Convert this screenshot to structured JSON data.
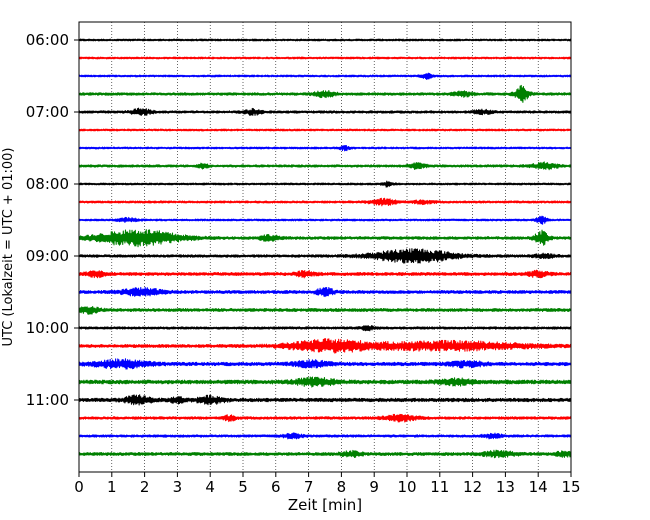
{
  "chart_data": {
    "type": "line",
    "title": "",
    "xlabel": "Zeit  [min]",
    "ylabel": "UTC (Lokalzeit = UTC + 01:00)",
    "xlim": [
      0,
      15
    ],
    "xticks": [
      0,
      1,
      2,
      3,
      4,
      5,
      6,
      7,
      8,
      9,
      10,
      11,
      12,
      13,
      14,
      15
    ],
    "y_tick_labels": [
      "06:00",
      "07:00",
      "08:00",
      "09:00",
      "10:00",
      "11:00"
    ],
    "grid": "vertical-dotted",
    "colors": [
      "#000000",
      "#ff0000",
      "#0000ff",
      "#008000"
    ],
    "traces": [
      {
        "start": "06:00",
        "color": "#000000",
        "base": 0.22,
        "events": []
      },
      {
        "start": "06:15",
        "color": "#ff0000",
        "base": 0.22,
        "events": []
      },
      {
        "start": "06:30",
        "color": "#0000ff",
        "base": 0.22,
        "events": [
          {
            "t": 10.6,
            "amp": 0.6,
            "dur": 0.15
          }
        ]
      },
      {
        "start": "06:45",
        "color": "#008000",
        "base": 0.3,
        "events": [
          {
            "t": 7.5,
            "amp": 0.7,
            "dur": 0.3
          },
          {
            "t": 11.7,
            "amp": 0.5,
            "dur": 0.3
          },
          {
            "t": 13.5,
            "amp": 1.8,
            "dur": 0.2
          }
        ]
      },
      {
        "start": "07:00",
        "color": "#000000",
        "base": 0.28,
        "events": [
          {
            "t": 1.9,
            "amp": 0.7,
            "dur": 0.3
          },
          {
            "t": 5.3,
            "amp": 0.6,
            "dur": 0.25
          },
          {
            "t": 12.3,
            "amp": 0.45,
            "dur": 0.3
          }
        ]
      },
      {
        "start": "07:15",
        "color": "#ff0000",
        "base": 0.22,
        "events": []
      },
      {
        "start": "07:30",
        "color": "#0000ff",
        "base": 0.22,
        "events": [
          {
            "t": 8.1,
            "amp": 0.5,
            "dur": 0.15
          }
        ]
      },
      {
        "start": "07:45",
        "color": "#008000",
        "base": 0.28,
        "events": [
          {
            "t": 3.8,
            "amp": 0.6,
            "dur": 0.15
          },
          {
            "t": 10.3,
            "amp": 0.6,
            "dur": 0.25
          },
          {
            "t": 14.2,
            "amp": 0.7,
            "dur": 0.4
          }
        ]
      },
      {
        "start": "08:00",
        "color": "#000000",
        "base": 0.22,
        "events": [
          {
            "t": 9.4,
            "amp": 0.55,
            "dur": 0.15
          }
        ]
      },
      {
        "start": "08:15",
        "color": "#ff0000",
        "base": 0.25,
        "events": [
          {
            "t": 9.3,
            "amp": 0.7,
            "dur": 0.4
          },
          {
            "t": 10.5,
            "amp": 0.4,
            "dur": 0.3
          }
        ]
      },
      {
        "start": "08:30",
        "color": "#0000ff",
        "base": 0.22,
        "events": [
          {
            "t": 1.5,
            "amp": 0.45,
            "dur": 0.3
          },
          {
            "t": 14.1,
            "amp": 0.9,
            "dur": 0.15
          }
        ]
      },
      {
        "start": "08:45",
        "color": "#008000",
        "base": 0.32,
        "events": [
          {
            "t": 1.8,
            "amp": 1.9,
            "dur": 1.2
          },
          {
            "t": 5.8,
            "amp": 0.6,
            "dur": 0.3
          },
          {
            "t": 14.1,
            "amp": 1.6,
            "dur": 0.2
          }
        ]
      },
      {
        "start": "09:00",
        "color": "#000000",
        "base": 0.3,
        "events": [
          {
            "t": 10.2,
            "amp": 1.6,
            "dur": 1.2
          },
          {
            "t": 14.2,
            "amp": 0.5,
            "dur": 0.3
          }
        ]
      },
      {
        "start": "09:15",
        "color": "#ff0000",
        "base": 0.35,
        "events": [
          {
            "t": 0.5,
            "amp": 0.6,
            "dur": 0.3
          },
          {
            "t": 6.9,
            "amp": 0.6,
            "dur": 0.3
          },
          {
            "t": 14.0,
            "amp": 0.6,
            "dur": 0.3
          }
        ]
      },
      {
        "start": "09:30",
        "color": "#0000ff",
        "base": 0.35,
        "events": [
          {
            "t": 1.9,
            "amp": 0.8,
            "dur": 0.6
          },
          {
            "t": 7.5,
            "amp": 0.9,
            "dur": 0.25
          }
        ]
      },
      {
        "start": "09:45",
        "color": "#008000",
        "base": 0.35,
        "events": [
          {
            "t": 0.3,
            "amp": 0.7,
            "dur": 0.3
          }
        ]
      },
      {
        "start": "10:00",
        "color": "#000000",
        "base": 0.28,
        "events": [
          {
            "t": 8.8,
            "amp": 0.45,
            "dur": 0.2
          }
        ]
      },
      {
        "start": "10:15",
        "color": "#ff0000",
        "base": 0.35,
        "events": [
          {
            "t": 7.6,
            "amp": 1.3,
            "dur": 1.2
          },
          {
            "t": 11.2,
            "amp": 1.0,
            "dur": 2.4
          }
        ]
      },
      {
        "start": "10:30",
        "color": "#0000ff",
        "base": 0.4,
        "events": [
          {
            "t": 1.3,
            "amp": 0.9,
            "dur": 0.8
          },
          {
            "t": 7.1,
            "amp": 0.7,
            "dur": 0.5
          },
          {
            "t": 11.8,
            "amp": 0.6,
            "dur": 0.5
          }
        ]
      },
      {
        "start": "10:45",
        "color": "#008000",
        "base": 0.45,
        "events": [
          {
            "t": 7.2,
            "amp": 0.8,
            "dur": 0.6
          },
          {
            "t": 11.5,
            "amp": 0.6,
            "dur": 0.5
          }
        ]
      },
      {
        "start": "11:00",
        "color": "#000000",
        "base": 0.4,
        "events": [
          {
            "t": 1.8,
            "amp": 0.9,
            "dur": 0.4
          },
          {
            "t": 4.0,
            "amp": 0.8,
            "dur": 0.4
          },
          {
            "t": 3.0,
            "amp": 0.6,
            "dur": 0.2
          }
        ]
      },
      {
        "start": "11:15",
        "color": "#ff0000",
        "base": 0.3,
        "events": [
          {
            "t": 4.6,
            "amp": 0.6,
            "dur": 0.2
          },
          {
            "t": 9.8,
            "amp": 0.7,
            "dur": 0.5
          }
        ]
      },
      {
        "start": "11:30",
        "color": "#0000ff",
        "base": 0.28,
        "events": [
          {
            "t": 6.5,
            "amp": 0.5,
            "dur": 0.3
          },
          {
            "t": 12.6,
            "amp": 0.45,
            "dur": 0.3
          }
        ]
      },
      {
        "start": "11:45",
        "color": "#008000",
        "base": 0.35,
        "events": [
          {
            "t": 8.3,
            "amp": 0.55,
            "dur": 0.3
          },
          {
            "t": 12.8,
            "amp": 0.6,
            "dur": 0.5
          },
          {
            "t": 14.8,
            "amp": 0.5,
            "dur": 0.3
          }
        ]
      }
    ]
  }
}
